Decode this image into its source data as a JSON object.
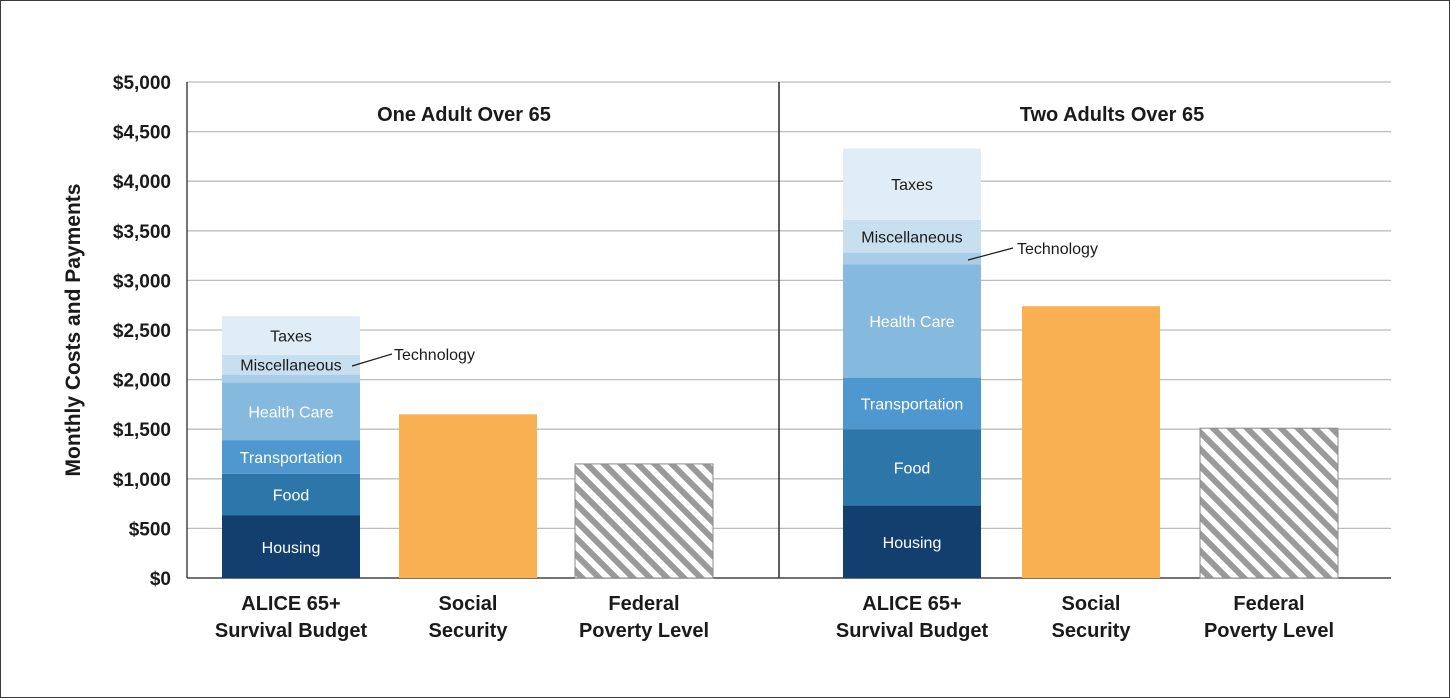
{
  "chart_data": {
    "type": "bar",
    "stacked": true,
    "ylabel": "Monthly Costs and Payments",
    "ylim": [
      0,
      5000
    ],
    "yticks": [
      0,
      500,
      1000,
      1500,
      2000,
      2500,
      3000,
      3500,
      4000,
      4500,
      5000
    ],
    "ytick_labels": [
      "$0",
      "$500",
      "$1,000",
      "$1,500",
      "$2,000",
      "$2,500",
      "$3,000",
      "$3,500",
      "$4,000",
      "$4,500",
      "$5,000"
    ],
    "grid": true,
    "colors": {
      "Housing": "#133f6e",
      "Food": "#2d76aa",
      "Transportation": "#4f98cf",
      "Health Care": "#86b9de",
      "Technology": "#a9cde7",
      "Miscellaneous": "#c8dfef",
      "Taxes": "#e1edf6",
      "Social Security": "#f9b052",
      "Federal Poverty Level": "hatch"
    },
    "panels": [
      {
        "title": "One Adult Over 65",
        "categories": [
          "ALICE 65+\nSurvival Budget",
          "Social\nSecurity",
          "Federal\nPoverty Level"
        ],
        "survival_budget": [
          {
            "name": "Housing",
            "value": 630
          },
          {
            "name": "Food",
            "value": 420
          },
          {
            "name": "Transportation",
            "value": 340
          },
          {
            "name": "Health Care",
            "value": 580
          },
          {
            "name": "Technology",
            "value": 80
          },
          {
            "name": "Miscellaneous",
            "value": 200
          },
          {
            "name": "Taxes",
            "value": 390
          }
        ],
        "social_security": 1650,
        "federal_poverty_level": 1150,
        "callout": "Technology"
      },
      {
        "title": "Two Adults Over 65",
        "categories": [
          "ALICE 65+\nSurvival Budget",
          "Social\nSecurity",
          "Federal\nPoverty Level"
        ],
        "survival_budget": [
          {
            "name": "Housing",
            "value": 730
          },
          {
            "name": "Food",
            "value": 770
          },
          {
            "name": "Transportation",
            "value": 520
          },
          {
            "name": "Health Care",
            "value": 1140
          },
          {
            "name": "Technology",
            "value": 120
          },
          {
            "name": "Miscellaneous",
            "value": 330
          },
          {
            "name": "Taxes",
            "value": 720
          }
        ],
        "social_security": 2740,
        "federal_poverty_level": 1510,
        "callout": "Technology"
      }
    ]
  }
}
